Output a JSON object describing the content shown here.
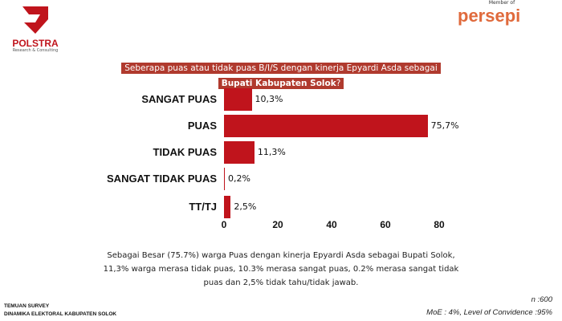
{
  "logos": {
    "left": "POLSTRA",
    "left_sub": "Research & Consulting",
    "right_member": "Member of",
    "right": "persepi"
  },
  "question": {
    "line1": "Seberapa puas atau tidak puas B/I/S dengan kinerja Epyardi Asda sebagai",
    "line2_bold": "Bupati Kabupaten Solok",
    "line2_end": "?"
  },
  "chart_data": {
    "type": "bar",
    "orientation": "horizontal",
    "categories": [
      "SANGAT PUAS",
      "PUAS",
      "TIDAK PUAS",
      "SANGAT TIDAK PUAS",
      "TT/TJ"
    ],
    "values": [
      10.3,
      75.7,
      11.3,
      0.2,
      2.5
    ],
    "data_labels": [
      "10,3%",
      "75,7%",
      "11,3%",
      "0,2%",
      "2,5%"
    ],
    "xticks": [
      "0",
      "20",
      "40",
      "60",
      "80"
    ],
    "xlim": [
      0,
      80
    ],
    "color": "#c0141c",
    "grid": false
  },
  "summary": {
    "line1": "Sebagai Besar (75.7%) warga Puas dengan kinerja Epyardi Asda sebagai Bupati Solok,",
    "line2": "11,3% warga merasa tidak puas, 10.3% merasa sangat puas, 0.2% merasa sangat tidak",
    "line3": "puas dan 2,5% tidak tahu/tidak jawab."
  },
  "footer": {
    "line1": "TEMUAN SURVEY",
    "line2": "DINAMIKA ELEKTORAL KABUPATEN SOLOK",
    "n": "n :600",
    "moe": "MoE : 4%, Level of Convidence :95%"
  }
}
